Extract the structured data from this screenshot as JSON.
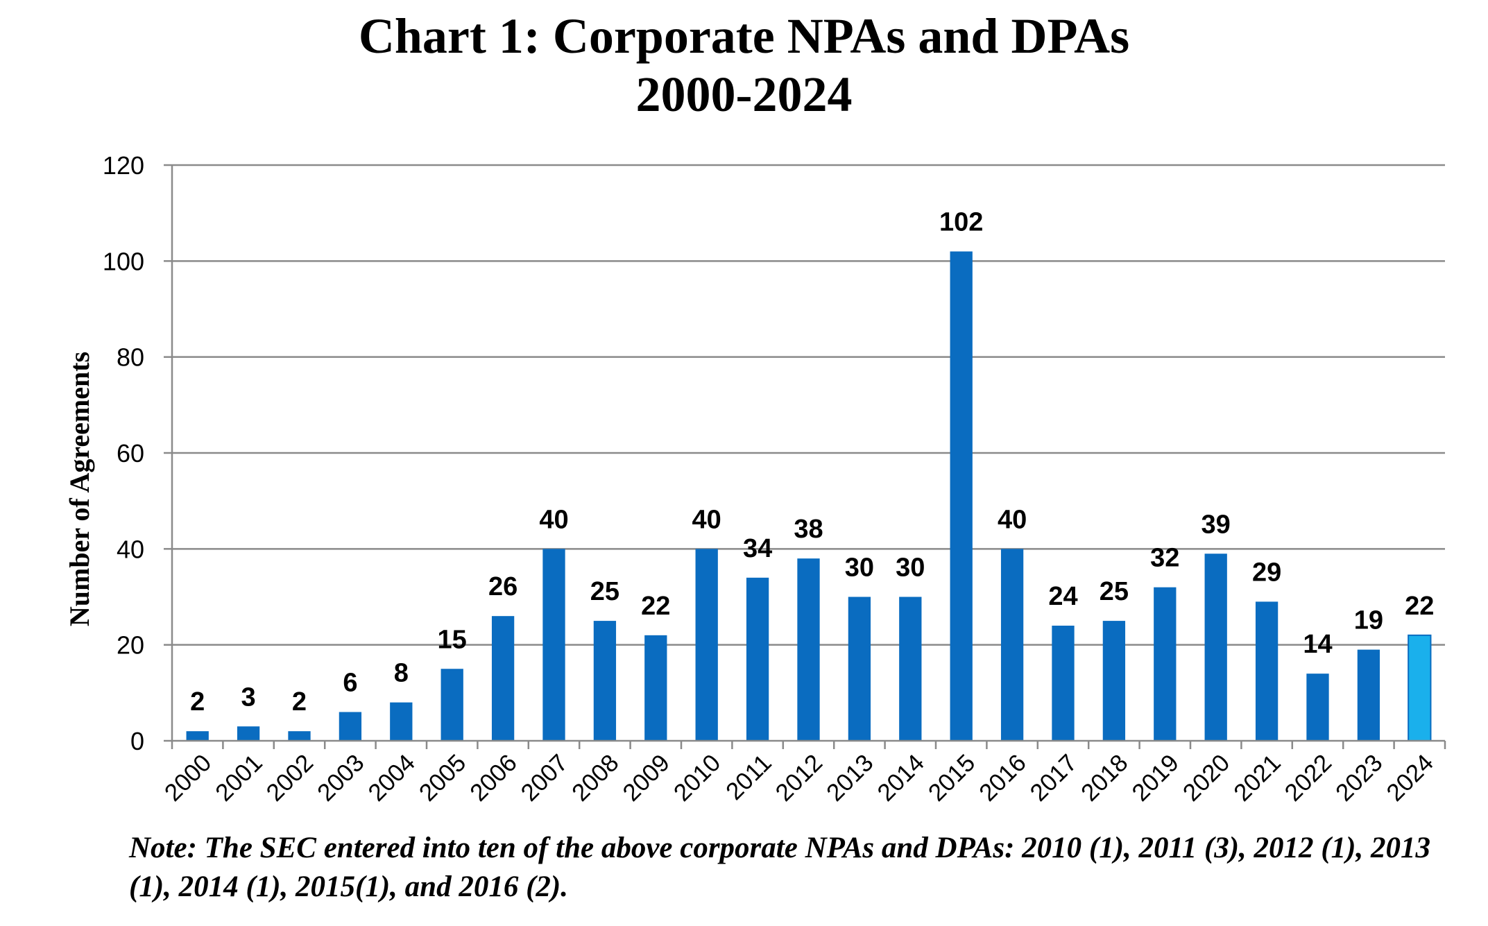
{
  "chart_data": {
    "type": "bar",
    "title_line1": "Chart 1: Corporate NPAs and DPAs",
    "title_line2": "2000-2024",
    "ylabel": "Number of Agreements",
    "xlabel": "",
    "ylim": [
      0,
      120
    ],
    "yticks": [
      0,
      20,
      40,
      60,
      80,
      100,
      120
    ],
    "grid": true,
    "categories": [
      "2000",
      "2001",
      "2002",
      "2003",
      "2004",
      "2005",
      "2006",
      "2007",
      "2008",
      "2009",
      "2010",
      "2011",
      "2012",
      "2013",
      "2014",
      "2015",
      "2016",
      "2017",
      "2018",
      "2019",
      "2020",
      "2021",
      "2022",
      "2023",
      "2024"
    ],
    "values": [
      2,
      3,
      2,
      6,
      8,
      15,
      26,
      40,
      25,
      22,
      40,
      34,
      38,
      30,
      30,
      102,
      40,
      24,
      25,
      32,
      39,
      29,
      14,
      19,
      22
    ],
    "bar_color": "#0a6cc0",
    "highlight_color": "#1ab0ec",
    "highlight_category": "2024",
    "note": "Note: The SEC entered into ten of the above corporate NPAs and DPAs: 2010 (1), 2011 (3), 2012 (1), 2013 (1), 2014 (1), 2015(1), and 2016 (2)."
  }
}
